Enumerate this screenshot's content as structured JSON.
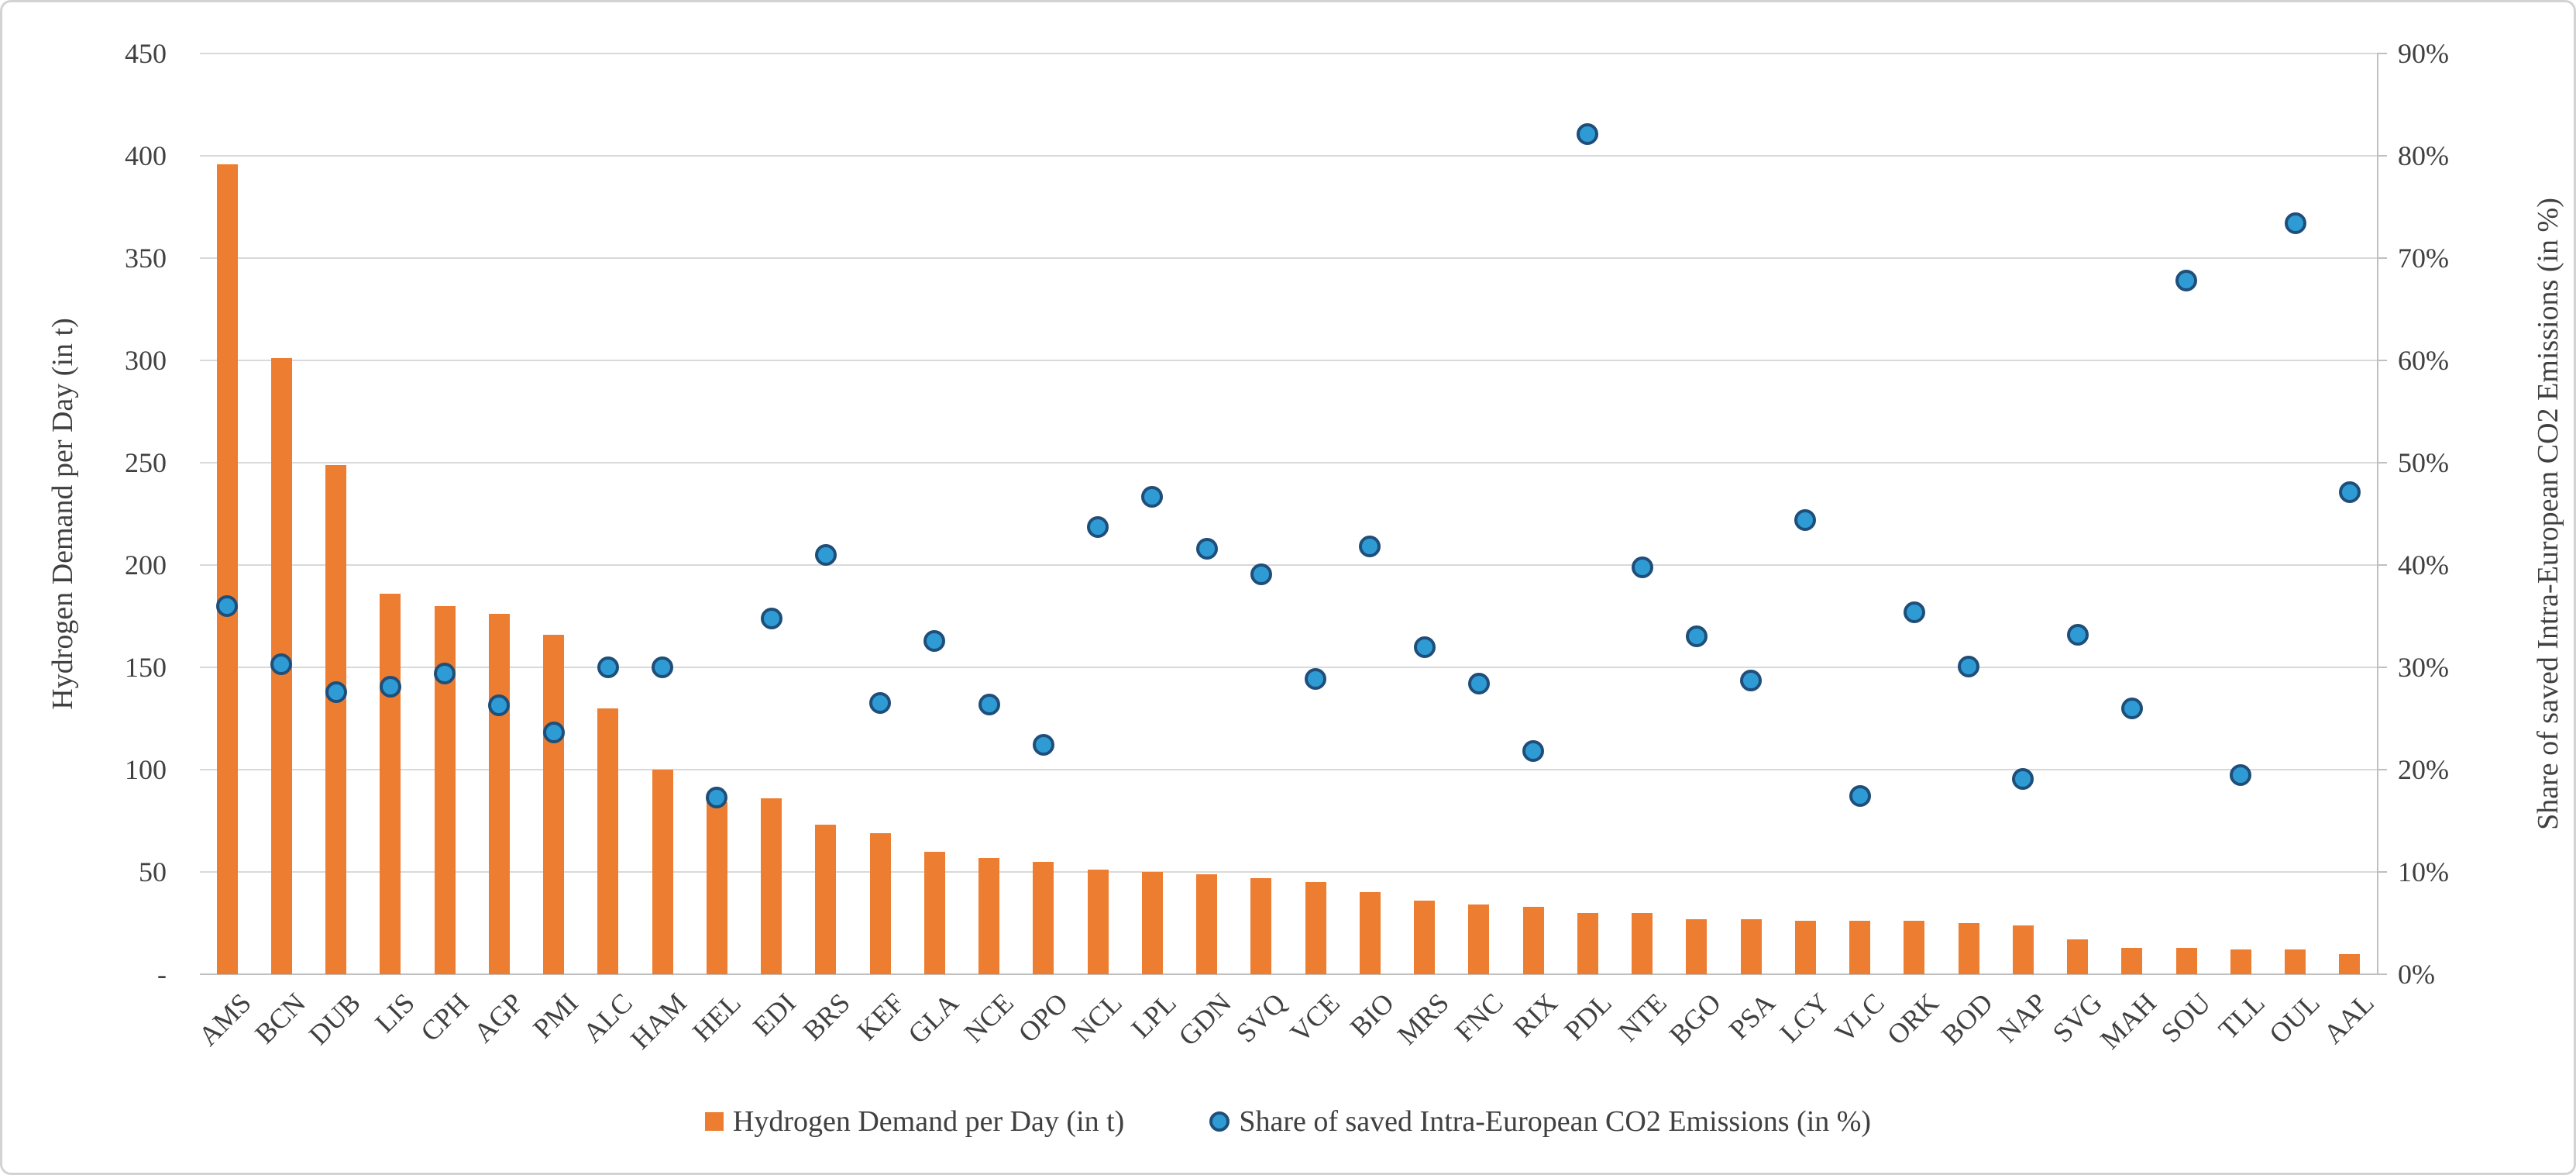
{
  "chart_data": {
    "type": "bar",
    "subtype": "combo-bar-scatter-dual-axis",
    "categories": [
      "AMS",
      "BCN",
      "DUB",
      "LIS",
      "CPH",
      "AGP",
      "PMI",
      "ALC",
      "HAM",
      "HEL",
      "EDI",
      "BRS",
      "KEF",
      "GLA",
      "NCE",
      "OPO",
      "NCL",
      "LPL",
      "GDN",
      "SVQ",
      "VCE",
      "BIO",
      "MRS",
      "FNC",
      "RIX",
      "PDL",
      "NTE",
      "BGO",
      "PSA",
      "LCY",
      "VLC",
      "ORK",
      "BOD",
      "NAP",
      "SVG",
      "MAH",
      "SOU",
      "TLL",
      "OUL",
      "AAL"
    ],
    "series": [
      {
        "name": "Hydrogen Demand per Day (in t)",
        "type": "bar",
        "axis": "left",
        "color": "#ED7D31",
        "values": [
          396,
          301,
          249,
          186,
          180,
          176,
          166,
          130,
          100,
          84,
          86,
          73,
          69,
          60,
          57,
          55,
          51,
          50,
          49,
          47,
          45,
          40,
          36,
          34,
          33,
          30,
          30,
          27,
          27,
          26,
          26,
          26,
          25,
          24,
          17,
          13,
          13,
          12,
          12,
          10
        ]
      },
      {
        "name": "Share of saved Intra-European CO2 Emissions (in %)",
        "type": "scatter",
        "axis": "right",
        "color": "#2E9BD5",
        "border_color": "#1F4E79",
        "values": [
          36.0,
          30.3,
          27.6,
          28.1,
          29.4,
          26.3,
          23.6,
          30.0,
          30.0,
          17.3,
          34.8,
          41.0,
          26.5,
          32.6,
          26.4,
          22.4,
          43.7,
          46.7,
          41.6,
          39.1,
          28.9,
          41.8,
          32.0,
          28.4,
          21.8,
          82.1,
          39.8,
          33.0,
          28.7,
          44.4,
          17.4,
          35.4,
          30.1,
          19.1,
          33.2,
          26.0,
          67.8,
          19.5,
          73.4,
          47.1
        ]
      }
    ],
    "left_axis": {
      "label": "Hydrogen Demand per Day (in t)",
      "min": 0,
      "max": 450,
      "step": 50,
      "tick_labels": [
        "450",
        "400",
        "350",
        "300",
        "250",
        "200",
        "150",
        "100",
        "50",
        "-"
      ]
    },
    "right_axis": {
      "label": "Share of saved Intra-European CO2 Emissions (in %)",
      "min": 0,
      "max": 90,
      "step": 10,
      "tick_labels": [
        "90%",
        "80%",
        "70%",
        "60%",
        "50%",
        "40%",
        "30%",
        "20%",
        "10%",
        "0%"
      ]
    },
    "grid": true,
    "gridline_color": "#d9d9d9",
    "axisline_color": "#bfbfbf",
    "text_color": "#404040",
    "legend_position": "bottom",
    "legend": [
      {
        "label": "Hydrogen Demand per Day (in t)",
        "marker": "square",
        "color": "#ED7D31"
      },
      {
        "label": "Share of saved Intra-European CO2 Emissions (in %)",
        "marker": "circle",
        "color": "#2E9BD5",
        "border_color": "#1F4E79"
      }
    ]
  }
}
